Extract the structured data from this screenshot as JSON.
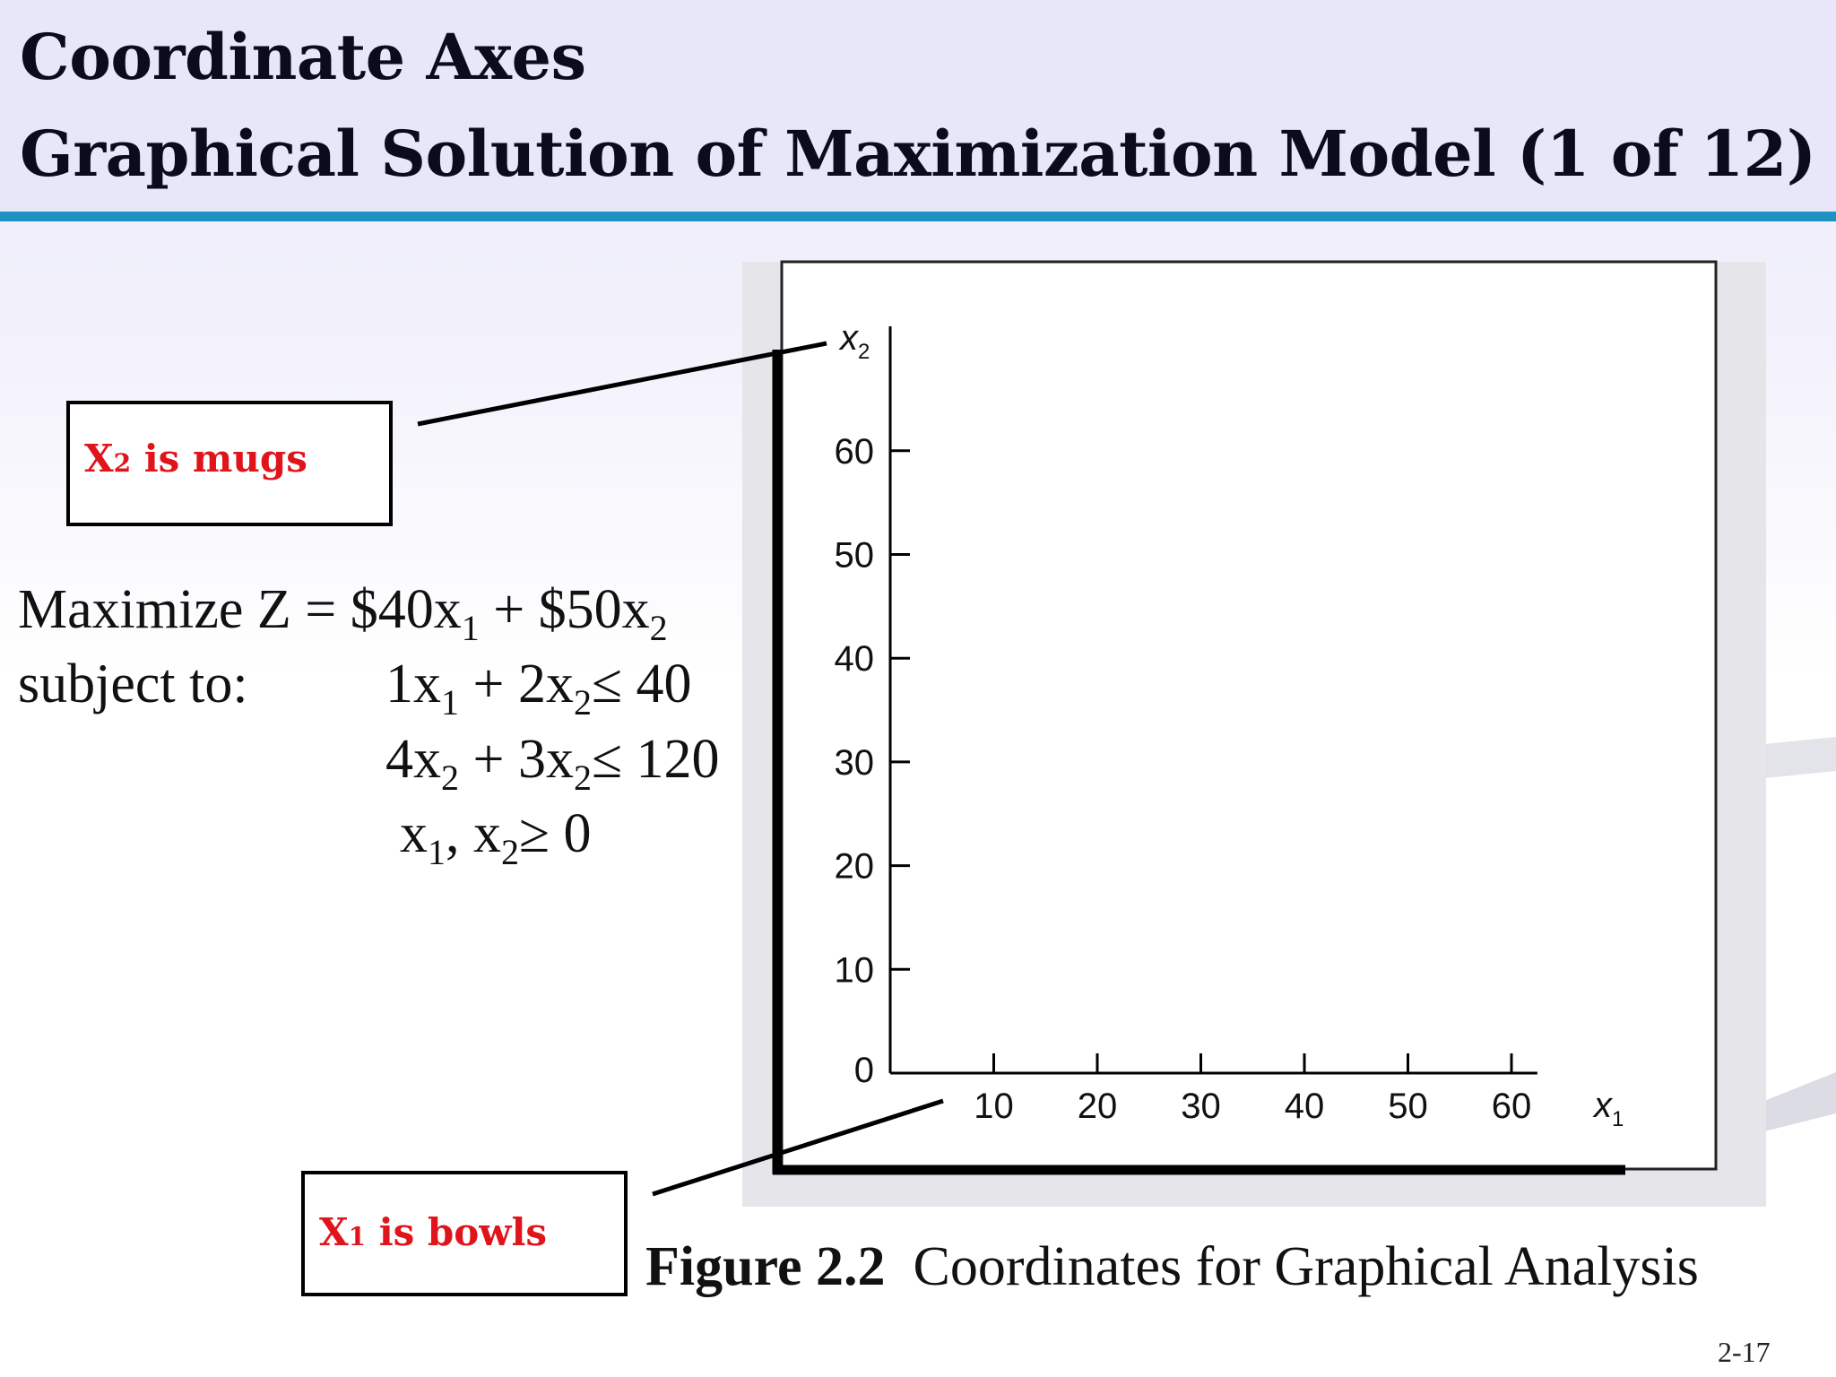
{
  "slide": {
    "title_line1": "Coordinate Axes",
    "title_line2": "Graphical Solution of  Maximization Model (1 of  12)",
    "page_number": "2-17",
    "header_color": "#e8e7fa",
    "rule_color": "#1f92c4"
  },
  "callouts": {
    "x2": {
      "var": "X",
      "sub": "2",
      "text": " is mugs"
    },
    "x1": {
      "var": "X",
      "sub": "1",
      "text": " is bowls"
    },
    "color": "#e0141b"
  },
  "model": {
    "objective": {
      "prefix": "Maximize Z = $40x",
      "s1": "1",
      "mid": " + $50x",
      "s2": "2"
    },
    "subject_to": "subject to:",
    "c1": {
      "a": "1x",
      "s1": "1",
      "b": " + 2x",
      "s2": "2",
      "rel": "≤ 40"
    },
    "c2": {
      "a": "4x",
      "s1": "2",
      "b": " + 3x",
      "s2": "2",
      "rel": "≤ 120"
    },
    "c3": {
      "a": "x",
      "s1": "1",
      "b": ", x",
      "s2": "2",
      "rel": "≥ 0"
    }
  },
  "figure": {
    "label": "Figure 2.2",
    "caption": "Coordinates for Graphical Analysis"
  },
  "chart_data": {
    "type": "scatter",
    "title": "",
    "series": [],
    "xlabel": {
      "var": "x",
      "sub": "1"
    },
    "ylabel": {
      "var": "x",
      "sub": "2"
    },
    "xlim": [
      0,
      70
    ],
    "ylim": [
      0,
      70
    ],
    "x_ticks": [
      10,
      20,
      30,
      40,
      50,
      60
    ],
    "y_ticks": [
      0,
      10,
      20,
      30,
      40,
      50,
      60
    ],
    "x_tick_labels": [
      "10",
      "20",
      "30",
      "40",
      "50",
      "60"
    ],
    "y_tick_labels": [
      "0",
      "10",
      "20",
      "30",
      "40",
      "50",
      "60"
    ],
    "grid": false,
    "legend": "none"
  }
}
